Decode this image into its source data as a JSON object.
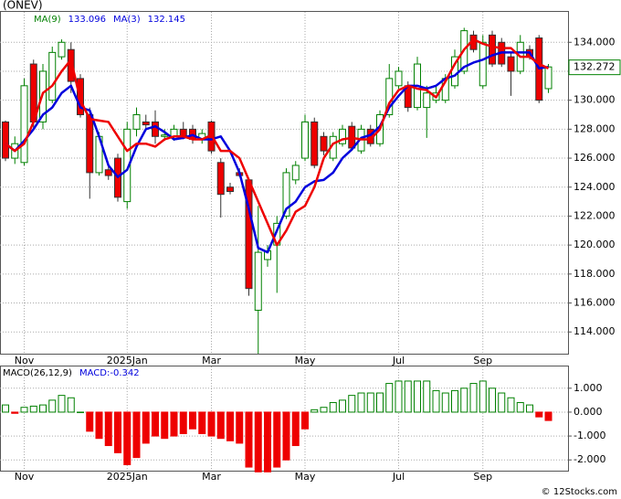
{
  "chart_data": [
    {
      "type": "candlestick",
      "title": "(ONEV)",
      "categories": [
        null,
        null,
        "Nov",
        null,
        null,
        null,
        null,
        null,
        null,
        null,
        null,
        null,
        null,
        "2025Jan",
        null,
        null,
        null,
        null,
        null,
        null,
        null,
        null,
        "Mar",
        null,
        null,
        null,
        null,
        null,
        null,
        null,
        null,
        null,
        "May",
        null,
        null,
        null,
        null,
        null,
        null,
        null,
        null,
        null,
        "Jul",
        null,
        null,
        null,
        null,
        null,
        null,
        null,
        null,
        "Sep",
        null,
        null,
        null,
        null,
        null,
        null,
        null
      ],
      "open": [
        128.5,
        126,
        125.7,
        132.5,
        128.5,
        130,
        133,
        133.5,
        131.5,
        129,
        125,
        125.2,
        126,
        123,
        128,
        128.5,
        128.5,
        127.5,
        127.5,
        128,
        128,
        127.3,
        128.5,
        125.7,
        124,
        125,
        124.5,
        115.5,
        119,
        120,
        122,
        124.5,
        126,
        128.5,
        127.5,
        126,
        127,
        128.2,
        126.5,
        128,
        127,
        129,
        131,
        131,
        129.5,
        129.5,
        130,
        130,
        131,
        132,
        134.5,
        131,
        134.5,
        134,
        133,
        132,
        133.5,
        134.3,
        130.8
      ],
      "high": [
        128.6,
        127.5,
        131.5,
        132.8,
        132.5,
        133.7,
        134.2,
        134,
        131.8,
        129.5,
        127.8,
        125.5,
        126.3,
        128.5,
        129.5,
        129,
        129.3,
        128,
        128.3,
        128.5,
        128.3,
        128,
        128.6,
        126,
        124.3,
        125.3,
        124.5,
        122.7,
        120,
        122,
        125.3,
        125.8,
        129,
        128.8,
        127.8,
        127.8,
        128.3,
        128.5,
        128.3,
        128.3,
        129.3,
        132.5,
        132.3,
        131.3,
        133,
        131,
        131,
        131.8,
        133.5,
        135,
        134.8,
        134.5,
        134.8,
        134.3,
        133.3,
        134.5,
        133.8,
        134.5,
        132.5
      ],
      "low": [
        125.8,
        125.6,
        125.5,
        128,
        128,
        129.8,
        132.8,
        130.5,
        128.8,
        123.2,
        124.8,
        124.5,
        123,
        122.5,
        127.5,
        128,
        127,
        127.2,
        127.2,
        127.3,
        127,
        127,
        126.3,
        121.9,
        123.5,
        124.7,
        116.5,
        112.5,
        118.5,
        116.7,
        121.8,
        124.2,
        125.8,
        125.3,
        126.2,
        125.8,
        126.8,
        126.5,
        126.3,
        126.8,
        126.8,
        128.8,
        130.8,
        129.2,
        129.3,
        127.4,
        129.8,
        129.8,
        130.8,
        131.8,
        133.3,
        130.8,
        132.3,
        132.3,
        130.3,
        131.8,
        132.8,
        129.8,
        130.5
      ],
      "close": [
        126,
        127,
        131,
        128.5,
        132,
        133.3,
        134,
        131.3,
        129,
        125,
        127.5,
        124.8,
        123.3,
        128,
        129,
        128.3,
        127.5,
        127.6,
        128,
        127.5,
        127.3,
        127.7,
        126.5,
        123.5,
        123.7,
        124.8,
        117,
        119.5,
        119.6,
        121.5,
        125,
        125.5,
        128.5,
        125.5,
        126.5,
        127.5,
        128,
        126.7,
        128,
        127,
        129,
        131.5,
        132,
        129.5,
        132.5,
        130.5,
        130.5,
        131.5,
        133,
        134.8,
        133.5,
        134,
        132.5,
        132.5,
        132,
        134,
        133,
        130,
        132.3
      ],
      "up_color": "#008000",
      "down_color": "#ee0000",
      "series": [
        {
          "name": "MA(9)",
          "last": 133.096,
          "color": "#0000dd",
          "values": [
            127,
            126.5,
            127.2,
            128,
            129,
            129.5,
            130.5,
            131,
            129.5,
            129.3,
            127.5,
            125.5,
            124.7,
            125.2,
            126.8,
            128,
            128.2,
            127.8,
            127.3,
            127.4,
            127.6,
            127.3,
            127.3,
            127.5,
            126.5,
            125,
            122.5,
            119.8,
            119.5,
            121,
            122.5,
            123,
            124,
            124.4,
            124.5,
            125,
            126,
            126.6,
            127.4,
            127.6,
            128.2,
            129.5,
            130.3,
            131,
            131,
            130.8,
            131,
            131.5,
            131.7,
            132.3,
            132.6,
            132.8,
            133.1,
            133.3,
            133.3,
            133.3,
            133.3,
            132.2,
            132.3
          ]
        },
        {
          "name": "MA(3)",
          "last": 132.145,
          "color": "#ee0000",
          "values": [
            127,
            126.5,
            127,
            128.5,
            130.5,
            131,
            132,
            132.8,
            130,
            128.7,
            128.6,
            128.5,
            127.5,
            126.5,
            127,
            127,
            126.8,
            127.3,
            127.5,
            127.5,
            127.3,
            127.3,
            127.6,
            126.5,
            126.5,
            126,
            124.5,
            123,
            121.5,
            120,
            121,
            122.3,
            122.7,
            124,
            126,
            127,
            127.3,
            127.4,
            127.3,
            127.3,
            128,
            129.8,
            130.7,
            131,
            130.8,
            130.7,
            130.2,
            131.3,
            132.5,
            133.5,
            134.2,
            133.9,
            133.7,
            133.6,
            133.6,
            133,
            133,
            132.5,
            132.2
          ]
        }
      ],
      "last_price": 132.272,
      "ylim": [
        112.5,
        136.1
      ],
      "yticks": [
        {
          "value": 114,
          "label": "114.000"
        },
        {
          "value": 116,
          "label": "116.000"
        },
        {
          "value": 118,
          "label": "118.000"
        },
        {
          "value": 120,
          "label": "120.000"
        },
        {
          "value": 122,
          "label": "122.000"
        },
        {
          "value": 124,
          "label": "124.000"
        },
        {
          "value": 126,
          "label": "126.000"
        },
        {
          "value": 128,
          "label": "128.000"
        },
        {
          "value": 130,
          "label": "130.000"
        },
        {
          "value": 132,
          "label": "132.000"
        },
        {
          "value": 134,
          "label": "134.000"
        }
      ],
      "grid": true
    },
    {
      "type": "bar",
      "title": "MACD(26,12,9)",
      "legend_text": "MACD:-0.342",
      "values": [
        0.3,
        -0.05,
        0.2,
        0.25,
        0.3,
        0.5,
        0.7,
        0.6,
        0,
        -0.8,
        -1.1,
        -1.4,
        -1.7,
        -2.2,
        -1.9,
        -1.3,
        -1,
        -1.1,
        -1,
        -0.9,
        -0.7,
        -0.9,
        -1,
        -1.1,
        -1.2,
        -1.3,
        -2.3,
        -2.5,
        -2.5,
        -2.3,
        -2,
        -1.4,
        -0.7,
        0.1,
        0.2,
        0.4,
        0.5,
        0.7,
        0.8,
        0.8,
        0.8,
        1.2,
        1.3,
        1.3,
        1.3,
        1.3,
        0.9,
        0.8,
        0.9,
        1,
        1.2,
        1.3,
        1,
        0.8,
        0.6,
        0.4,
        0.3,
        -0.2,
        -0.35
      ],
      "up_color": "#008000",
      "down_color": "#ee0000",
      "ylim": [
        -2.45,
        1.91
      ],
      "yticks": [
        {
          "value": 1,
          "label": "1.000"
        },
        {
          "value": 0,
          "label": "0.000"
        },
        {
          "value": -1,
          "label": "-1.000"
        },
        {
          "value": -2,
          "label": "-2.000"
        }
      ],
      "grid": true
    }
  ],
  "footer": "© 12Stocks.com"
}
